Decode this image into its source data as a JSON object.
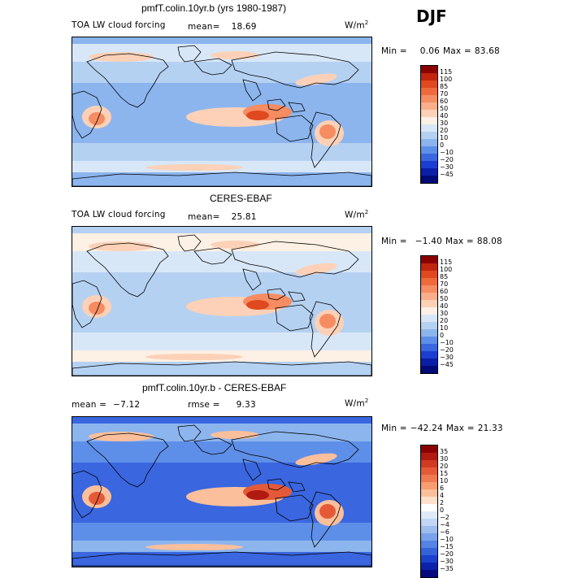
{
  "season": "DJF",
  "panels": [
    {
      "title": "pmfT.colin.10yr.b (yrs 1980-1987)",
      "variable": "TOA LW cloud forcing",
      "stat_label": "mean=",
      "stat_value": "18.69",
      "units_base": "W/m",
      "units_exp": "2",
      "min_label": "Min =",
      "min_value": "0.06",
      "max_label": "Max =",
      "max_value": "83.68",
      "colorbar_levels": [
        "115",
        "100",
        "85",
        "70",
        "60",
        "50",
        "40",
        "30",
        "20",
        "10",
        "0",
        "−10",
        "−20",
        "−30",
        "−45"
      ],
      "colorbar_colors": [
        "#8b0000",
        "#c2250f",
        "#e0491f",
        "#ee6a3c",
        "#f68c62",
        "#f9ae8b",
        "#fcd1b7",
        "#fdf0e4",
        "#d8e7f7",
        "#b5d1f2",
        "#8cb5ee",
        "#5e8fe8",
        "#3a66e0",
        "#1c3ed0",
        "#0a1ea8",
        "#020a78"
      ],
      "map_palette": {
        "ocean_low": "#8cb5ee",
        "ocean_mid": "#b5d1f2",
        "mid": "#d8e7f7",
        "warm1": "#fcd1b7",
        "warm2": "#f68c62",
        "warm3": "#e0491f"
      }
    },
    {
      "title": "CERES-EBAF",
      "variable": "TOA LW cloud forcing",
      "stat_label": "mean=",
      "stat_value": "25.81",
      "units_base": "W/m",
      "units_exp": "2",
      "min_label": "Min =",
      "min_value": "−1.40",
      "max_label": "Max =",
      "max_value": "88.08",
      "colorbar_levels": [
        "115",
        "100",
        "85",
        "70",
        "60",
        "50",
        "40",
        "30",
        "20",
        "10",
        "0",
        "−10",
        "−20",
        "−30",
        "−45"
      ],
      "colorbar_colors": [
        "#8b0000",
        "#c2250f",
        "#e0491f",
        "#ee6a3c",
        "#f68c62",
        "#f9ae8b",
        "#fcd1b7",
        "#fdf0e4",
        "#d8e7f7",
        "#b5d1f2",
        "#8cb5ee",
        "#5e8fe8",
        "#3a66e0",
        "#1c3ed0",
        "#0a1ea8",
        "#020a78"
      ],
      "map_palette": {
        "ocean_low": "#b5d1f2",
        "ocean_mid": "#d8e7f7",
        "mid": "#fdf0e4",
        "warm1": "#fcd1b7",
        "warm2": "#f68c62",
        "warm3": "#e0491f"
      }
    },
    {
      "title": "pmfT.colin.10yr.b - CERES-EBAF",
      "stat_label": "mean =",
      "stat_value": "−7.12",
      "stat2_label": "rmse =",
      "stat2_value": "9.33",
      "units_base": "W/m",
      "units_exp": "2",
      "min_label": "Min =",
      "min_value": "−42.24",
      "max_label": "Max =",
      "max_value": "21.33",
      "colorbar_levels": [
        "35",
        "30",
        "20",
        "15",
        "10",
        "6",
        "4",
        "2",
        "0",
        "−2",
        "−4",
        "−6",
        "−10",
        "−15",
        "−20",
        "−30",
        "−35"
      ],
      "colorbar_colors": [
        "#8b0000",
        "#b01a10",
        "#d03a22",
        "#e45a38",
        "#f07a50",
        "#f89c72",
        "#fbbf9c",
        "#fde0cc",
        "#ffffff",
        "#dfeaf8",
        "#c0d6f4",
        "#9dbdef",
        "#7aa2ea",
        "#5583e3",
        "#3563da",
        "#1a42cc",
        "#0a22aa",
        "#030a80"
      ],
      "map_palette": {
        "ocean_low": "#3a66e0",
        "ocean_mid": "#5e8fe8",
        "mid": "#8cb5ee",
        "warm1": "#fbbf9c",
        "warm2": "#e45a38",
        "warm3": "#b01a10"
      }
    }
  ]
}
